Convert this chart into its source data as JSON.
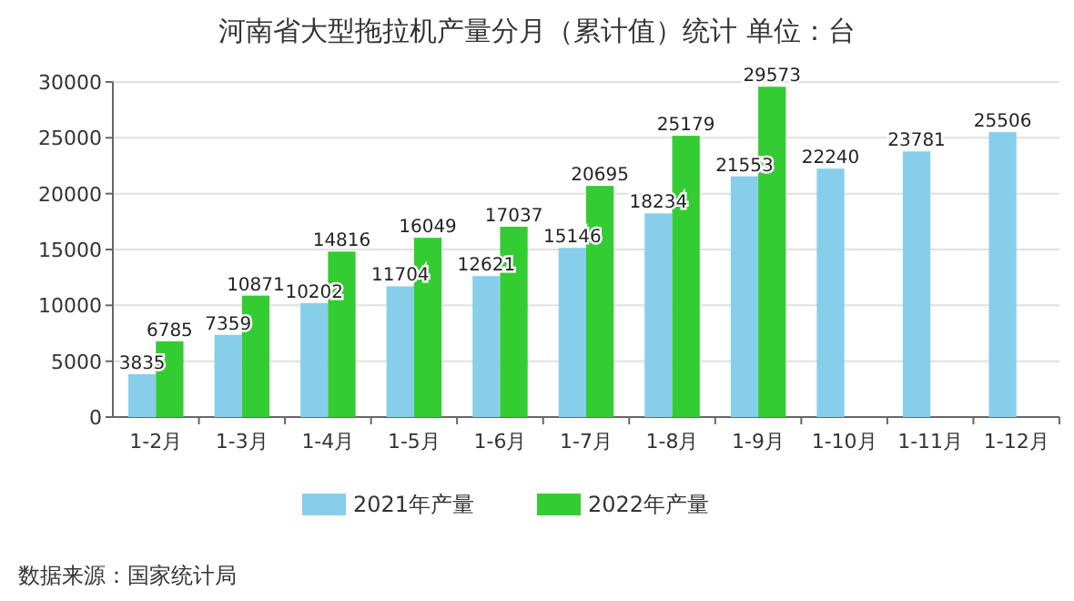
{
  "chart_data": {
    "type": "bar",
    "title": "河南省大型拖拉机产量分月（累计值）统计 单位：台",
    "categories": [
      "1-2月",
      "1-3月",
      "1-4月",
      "1-5月",
      "1-6月",
      "1-7月",
      "1-8月",
      "1-9月",
      "1-10月",
      "1-11月",
      "1-12月"
    ],
    "series": [
      {
        "name": "2021年产量",
        "color": "#87ceeb",
        "values": [
          3835,
          7359,
          10202,
          11704,
          12621,
          15146,
          18234,
          21553,
          22240,
          23781,
          25506
        ]
      },
      {
        "name": "2022年产量",
        "color": "#33cc33",
        "values": [
          6785,
          10871,
          14816,
          16049,
          17037,
          20695,
          25179,
          29573,
          null,
          null,
          null
        ]
      }
    ],
    "ylim": [
      0,
      30000
    ],
    "yticks": [
      0,
      5000,
      10000,
      15000,
      20000,
      25000,
      30000
    ],
    "grid": "y",
    "legend": "bottom",
    "data_labels": true,
    "annotations": [
      "数据来源：国家统计局"
    ]
  }
}
